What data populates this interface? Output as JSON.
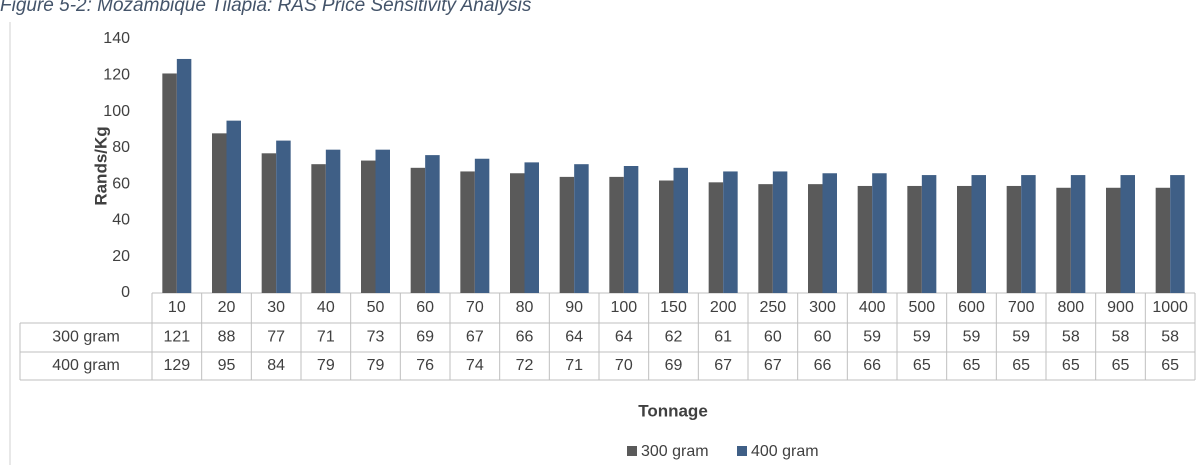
{
  "chart_data": {
    "type": "bar",
    "title": "Figure 5-2: Mozambique Tilapia: RAS Price Sensitivity Analysis",
    "y_label": "Rands/Kg",
    "x_label": "Tonnage",
    "categories": [
      "10",
      "20",
      "30",
      "40",
      "50",
      "60",
      "70",
      "80",
      "90",
      "100",
      "150",
      "200",
      "250",
      "300",
      "400",
      "500",
      "600",
      "700",
      "800",
      "900",
      "1000"
    ],
    "series": [
      {
        "name": "300 gram",
        "color": "#5a5a5a",
        "values": [
          121,
          88,
          77,
          71,
          73,
          69,
          67,
          66,
          64,
          64,
          62,
          61,
          60,
          60,
          59,
          59,
          59,
          59,
          58,
          58,
          58
        ]
      },
      {
        "name": "400 gram",
        "color": "#3f5f86",
        "values": [
          129,
          95,
          84,
          79,
          79,
          76,
          74,
          72,
          71,
          70,
          69,
          67,
          67,
          66,
          66,
          65,
          65,
          65,
          65,
          65,
          65
        ]
      }
    ],
    "ylim": [
      0,
      140
    ],
    "yticks": [
      0,
      20,
      40,
      60,
      80,
      100,
      120,
      140
    ],
    "grid": false,
    "legend": "bottom"
  }
}
